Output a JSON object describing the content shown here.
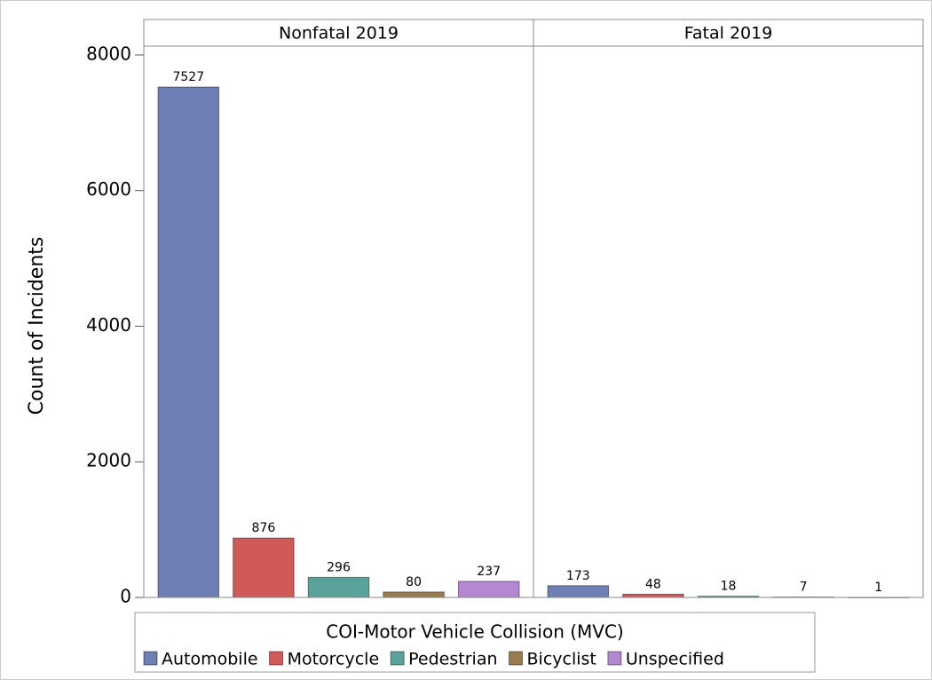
{
  "chart_data": {
    "type": "bar",
    "y_label": "Count of Incidents",
    "categories": [
      "Nonfatal 2019",
      "Fatal 2019"
    ],
    "series": [
      {
        "name": "Automobile",
        "color": "#6f7fb5",
        "values": [
          7527,
          173
        ]
      },
      {
        "name": "Motorcycle",
        "color": "#d05a57",
        "values": [
          876,
          48
        ]
      },
      {
        "name": "Pedestrian",
        "color": "#5ba39a",
        "values": [
          296,
          18
        ]
      },
      {
        "name": "Bicyclist",
        "color": "#9a7b4f",
        "values": [
          80,
          7
        ]
      },
      {
        "name": "Unspecified",
        "color": "#b586d2",
        "values": [
          237,
          1
        ]
      }
    ],
    "legend_title": "COI-Motor Vehicle Collision (MVC)",
    "ylim": [
      0,
      8130
    ],
    "yticks": [
      0,
      2000,
      4000,
      6000,
      8000
    ]
  }
}
